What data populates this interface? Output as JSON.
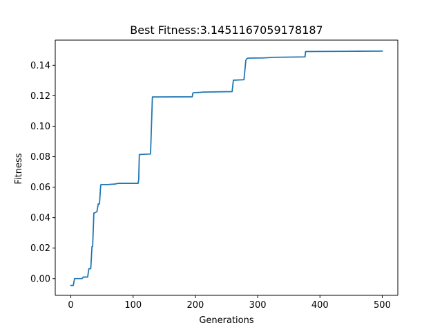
{
  "chart_data": {
    "type": "line",
    "title": "Best Fitness:3.1451167059178187",
    "xlabel": "Generations",
    "ylabel": "Fitness",
    "xlim": [
      -25,
      525
    ],
    "ylim": [
      -0.011,
      0.1565
    ],
    "xticks": [
      0,
      100,
      200,
      300,
      400,
      500
    ],
    "xtick_labels": [
      "0",
      "100",
      "200",
      "300",
      "400",
      "500"
    ],
    "yticks": [
      0.0,
      0.02,
      0.04,
      0.06,
      0.08,
      0.1,
      0.12,
      0.14
    ],
    "ytick_labels": [
      "0.00",
      "0.02",
      "0.04",
      "0.06",
      "0.08",
      "0.10",
      "0.12",
      "0.14"
    ],
    "grid": false,
    "line_color": "#1f77b4",
    "series": [
      {
        "x": [
          0,
          4,
          6,
          18,
          20,
          27,
          29,
          32,
          34,
          35,
          37,
          38,
          42,
          44,
          46,
          48,
          50,
          60,
          62,
          70,
          74,
          76,
          108,
          109,
          110,
          125,
          128,
          131,
          140,
          195,
          196,
          198,
          208,
          212,
          259,
          261,
          278,
          281,
          283,
          286,
          310,
          325,
          376,
          377,
          460,
          500
        ],
        "y": [
          -0.0045,
          -0.0045,
          0.0,
          0.0,
          0.001,
          0.001,
          0.0065,
          0.0065,
          0.021,
          0.021,
          0.043,
          0.043,
          0.044,
          0.049,
          0.049,
          0.0615,
          0.0617,
          0.0617,
          0.0618,
          0.062,
          0.0623,
          0.0625,
          0.0625,
          0.065,
          0.0814,
          0.0817,
          0.0818,
          0.1192,
          0.1192,
          0.1193,
          0.1218,
          0.122,
          0.1222,
          0.1224,
          0.1227,
          0.1302,
          0.1305,
          0.1432,
          0.1445,
          0.1447,
          0.1448,
          0.1452,
          0.1455,
          0.149,
          0.1492,
          0.1493
        ]
      }
    ]
  }
}
